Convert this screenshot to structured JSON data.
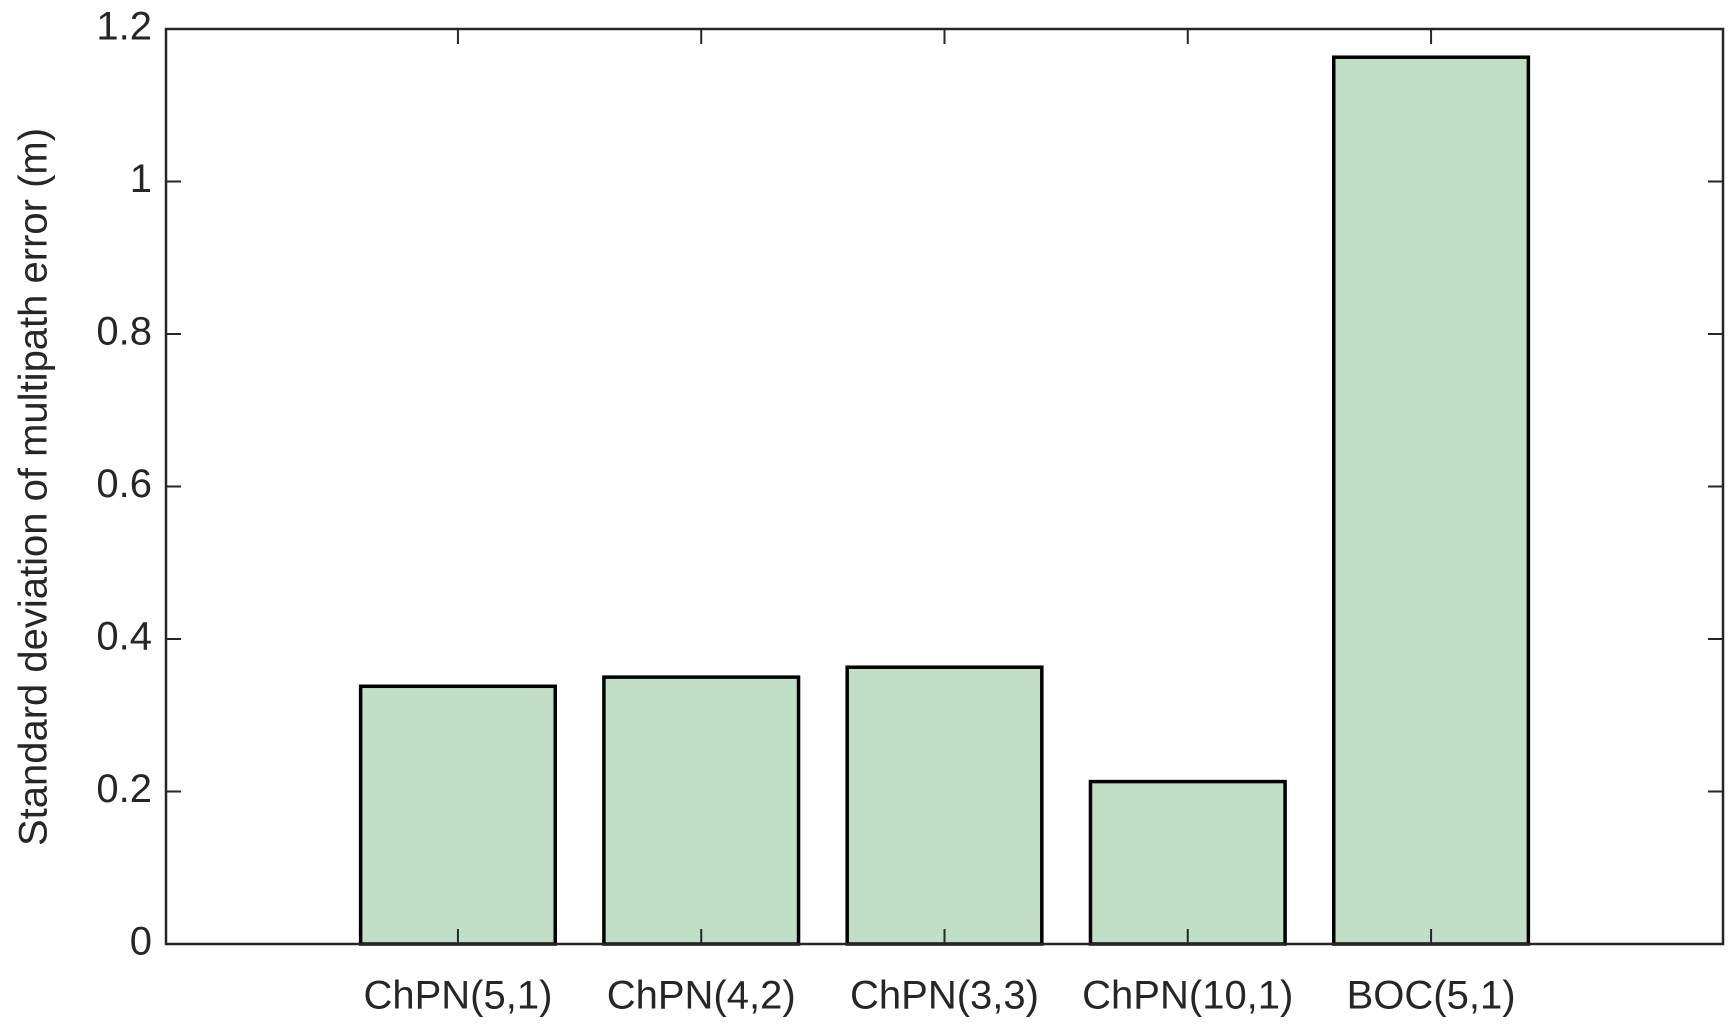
{
  "chart_data": {
    "type": "bar",
    "y_label": "Standard deviation of multipath error (m)",
    "categories": [
      "ChPN(5,1)",
      "ChPN(4,2)",
      "ChPN(3,3)",
      "ChPN(10,1)",
      "BOC(5,1)"
    ],
    "values": [
      0.338,
      0.35,
      0.363,
      0.213,
      1.163
    ],
    "color": "#c1dec6",
    "ylim": [
      0,
      1.2
    ],
    "yticks": [
      0,
      0.2,
      0.4,
      0.6,
      0.8,
      1,
      1.2
    ],
    "grid": false
  }
}
